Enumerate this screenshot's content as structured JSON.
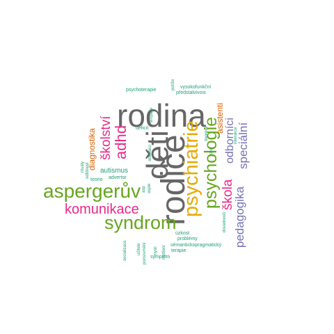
{
  "colors": {
    "teal": "#1b9e77",
    "orange": "#d95f02",
    "purple": "#7570b3",
    "magenta": "#e7298a",
    "green": "#66a61e",
    "gold": "#e6ab02",
    "gray": "#666666"
  },
  "words": [
    {
      "text": "rodina",
      "color": "gray"
    },
    {
      "text": "děti",
      "color": "gray"
    },
    {
      "text": "rodiče",
      "color": "gray"
    },
    {
      "text": "psychiatrie",
      "color": "gold"
    },
    {
      "text": "psychologie",
      "color": "green"
    },
    {
      "text": "aspergerův",
      "color": "green"
    },
    {
      "text": "syndrom",
      "color": "green"
    },
    {
      "text": "komunikace",
      "color": "magenta"
    },
    {
      "text": "adhd",
      "color": "magenta"
    },
    {
      "text": "školství",
      "color": "magenta"
    },
    {
      "text": "škola",
      "color": "magenta"
    },
    {
      "text": "pedagogika",
      "color": "purple"
    },
    {
      "text": "speciální",
      "color": "purple"
    },
    {
      "text": "odborníci",
      "color": "purple"
    },
    {
      "text": "asistenti",
      "color": "orange"
    },
    {
      "text": "diagnostika",
      "color": "orange"
    },
    {
      "text": "autismus",
      "color": "teal"
    },
    {
      "text": "advertor",
      "color": "teal"
    },
    {
      "text": "teorie",
      "color": "teal"
    },
    {
      "text": "psychoterapie",
      "color": "teal"
    },
    {
      "text": "vysokofunkční",
      "color": "teal"
    },
    {
      "text": "předstalvivost",
      "color": "teal"
    },
    {
      "text": "potíže",
      "color": "teal"
    },
    {
      "text": "deficit",
      "color": "teal"
    },
    {
      "text": "empatie",
      "color": "teal"
    },
    {
      "text": "abstrakci",
      "color": "teal"
    },
    {
      "text": "rituály",
      "color": "teal"
    },
    {
      "text": "odlišnost",
      "color": "teal"
    },
    {
      "text": "dovednosti",
      "color": "teal"
    },
    {
      "text": "deprese",
      "color": "teal"
    },
    {
      "text": "ocd",
      "color": "teal"
    },
    {
      "text": "interakce",
      "color": "teal"
    },
    {
      "text": "aspie",
      "color": "teal"
    },
    {
      "text": "asp",
      "color": "teal"
    },
    {
      "text": "úzkost",
      "color": "teal"
    },
    {
      "text": "problémy",
      "color": "teal"
    },
    {
      "text": "sémantickopragmatický",
      "color": "teal"
    },
    {
      "text": "terapie",
      "color": "teal"
    },
    {
      "text": "symptom",
      "color": "teal"
    },
    {
      "text": "myšlení",
      "color": "teal"
    },
    {
      "text": "mysli",
      "color": "teal"
    },
    {
      "text": "porozumění",
      "color": "teal"
    },
    {
      "text": "učitele",
      "color": "teal"
    },
    {
      "text": "socializace",
      "color": "teal"
    }
  ]
}
